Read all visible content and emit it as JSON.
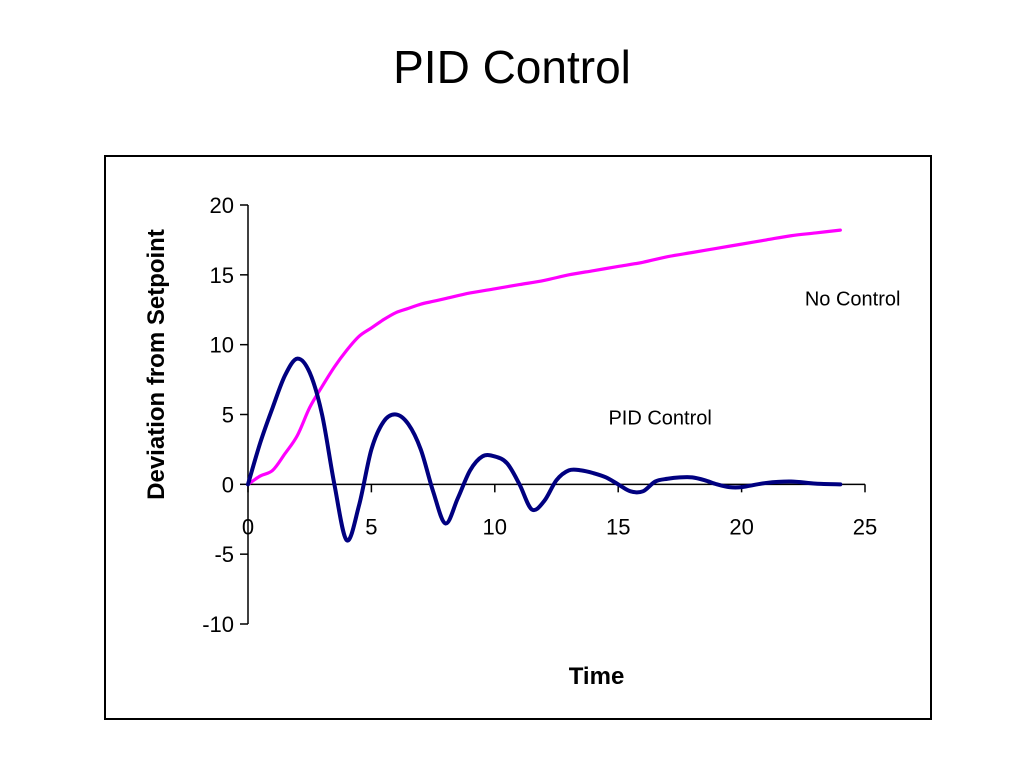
{
  "slide": {
    "title": "PID Control"
  },
  "chart_data": {
    "type": "line",
    "title": "",
    "xlabel": "Time",
    "ylabel": "Deviation from Setpoint",
    "xlim": [
      0,
      25
    ],
    "ylim": [
      -10,
      20
    ],
    "xticks": [
      0,
      5,
      10,
      15,
      20,
      25
    ],
    "yticks": [
      -10,
      -5,
      0,
      5,
      10,
      15,
      20
    ],
    "xtick_labels": [
      "0",
      "5",
      "10",
      "15",
      "20",
      "25"
    ],
    "ytick_labels": [
      "-10",
      "-5",
      "0",
      "5",
      "10",
      "15",
      "20"
    ],
    "grid": false,
    "legend": "none",
    "series": [
      {
        "color": "#ff00ff",
        "x": [
          0,
          0.5,
          1,
          1.5,
          2,
          2.5,
          3,
          3.5,
          4,
          4.5,
          5,
          5.5,
          6,
          6.5,
          7,
          7.5,
          8,
          9,
          10,
          11,
          12,
          13,
          14,
          15,
          16,
          17,
          18,
          19,
          20,
          21,
          22,
          23,
          24
        ],
        "y": [
          0,
          0.6,
          1.0,
          2.2,
          3.5,
          5.5,
          7.0,
          8.4,
          9.6,
          10.6,
          11.2,
          11.8,
          12.3,
          12.6,
          12.9,
          13.1,
          13.3,
          13.7,
          14.0,
          14.3,
          14.6,
          15.0,
          15.3,
          15.6,
          15.9,
          16.3,
          16.6,
          16.9,
          17.2,
          17.5,
          17.8,
          18.0,
          18.2
        ]
      },
      {
        "color": "#000080",
        "x": [
          0,
          0.5,
          1,
          1.5,
          2,
          2.5,
          3,
          3.5,
          4,
          4.5,
          5,
          5.5,
          6,
          6.5,
          7,
          7.5,
          8,
          8.5,
          9,
          9.5,
          10,
          10.5,
          11,
          11.5,
          12,
          12.5,
          13,
          13.5,
          14,
          14.5,
          15,
          15.5,
          16,
          16.5,
          17,
          17.5,
          18,
          18.5,
          19,
          19.5,
          20,
          21,
          22,
          23,
          24
        ],
        "y": [
          0,
          3,
          5.5,
          7.8,
          9.0,
          8.0,
          5.0,
          0.0,
          -4.0,
          -1.5,
          2.5,
          4.5,
          5.0,
          4.3,
          2.5,
          -0.5,
          -2.8,
          -1.0,
          1.0,
          2.0,
          2.0,
          1.5,
          0.0,
          -1.8,
          -1.2,
          0.3,
          1.0,
          1.0,
          0.8,
          0.5,
          0.0,
          -0.5,
          -0.5,
          0.2,
          0.4,
          0.5,
          0.5,
          0.3,
          0.0,
          -0.2,
          -0.2,
          0.1,
          0.2,
          0.05,
          0.0
        ]
      }
    ],
    "annotations": [
      {
        "text": "No Control",
        "x": 24.5,
        "y": 12.8
      },
      {
        "text": "PID Control",
        "x": 16.7,
        "y": 4.3
      }
    ]
  }
}
